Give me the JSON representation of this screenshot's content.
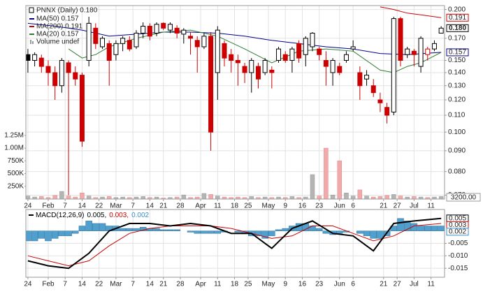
{
  "chart_data": [
    {
      "type": "candlestick",
      "title": "PNNX (Daily) 0.180",
      "log_y": true,
      "grid": true,
      "x": [
        0,
        2,
        4,
        6,
        8,
        10,
        12,
        14,
        16,
        18,
        20,
        22,
        24,
        26,
        28,
        30,
        32,
        34,
        36,
        38,
        40,
        42,
        44,
        46,
        48,
        50,
        52,
        54,
        56,
        58,
        60,
        62,
        64,
        66,
        68,
        70,
        72,
        74,
        76,
        78,
        80,
        82,
        84,
        86,
        88,
        90,
        92,
        94,
        96,
        98,
        100,
        102,
        104,
        106,
        108,
        110,
        112,
        114,
        116,
        118,
        120,
        122
      ],
      "open": [
        0.155,
        0.15,
        0.152,
        0.145,
        0.14,
        0.13,
        0.148,
        0.14,
        0.138,
        0.15,
        0.18,
        0.162,
        0.165,
        0.155,
        0.165,
        0.168,
        0.162,
        0.175,
        0.182,
        0.175,
        0.185,
        0.178,
        0.18,
        0.174,
        0.172,
        0.168,
        0.162,
        0.172,
        0.14,
        0.165,
        0.155,
        0.15,
        0.145,
        0.14,
        0.145,
        0.14,
        0.142,
        0.15,
        0.155,
        0.15,
        0.165,
        0.155,
        0.162,
        0.16,
        0.15,
        0.14,
        0.145,
        0.15,
        0.16,
        0.14,
        0.135,
        0.13,
        0.12,
        0.115,
        0.112,
        0.19,
        0.155,
        0.158,
        0.145,
        0.155,
        0.16,
        0.175
      ],
      "high": [
        0.16,
        0.157,
        0.155,
        0.15,
        0.145,
        0.152,
        0.15,
        0.145,
        0.14,
        0.192,
        0.185,
        0.172,
        0.168,
        0.168,
        0.172,
        0.172,
        0.178,
        0.186,
        0.185,
        0.186,
        0.186,
        0.186,
        0.183,
        0.18,
        0.176,
        0.172,
        0.175,
        0.176,
        0.182,
        0.168,
        0.16,
        0.155,
        0.148,
        0.152,
        0.148,
        0.152,
        0.145,
        0.162,
        0.158,
        0.162,
        0.168,
        0.172,
        0.176,
        0.162,
        0.158,
        0.152,
        0.148,
        0.158,
        0.168,
        0.145,
        0.142,
        0.135,
        0.125,
        0.118,
        0.192,
        0.192,
        0.162,
        0.16,
        0.172,
        0.162,
        0.168,
        0.182
      ],
      "low": [
        0.14,
        0.145,
        0.14,
        0.13,
        0.12,
        0.125,
        0.07,
        0.13,
        0.092,
        0.145,
        0.16,
        0.16,
        0.13,
        0.15,
        0.158,
        0.158,
        0.16,
        0.17,
        0.168,
        0.172,
        0.178,
        0.175,
        0.17,
        0.165,
        0.155,
        0.14,
        0.16,
        0.09,
        0.12,
        0.145,
        0.14,
        0.13,
        0.132,
        0.125,
        0.128,
        0.138,
        0.128,
        0.148,
        0.148,
        0.14,
        0.148,
        0.145,
        0.158,
        0.15,
        0.13,
        0.13,
        0.138,
        0.148,
        0.158,
        0.12,
        0.13,
        0.122,
        0.112,
        0.105,
        0.11,
        0.145,
        0.152,
        0.145,
        0.14,
        0.15,
        0.158,
        0.175
      ],
      "close": [
        0.15,
        0.155,
        0.145,
        0.14,
        0.13,
        0.15,
        0.14,
        0.135,
        0.095,
        0.185,
        0.165,
        0.17,
        0.15,
        0.165,
        0.17,
        0.16,
        0.175,
        0.182,
        0.172,
        0.184,
        0.18,
        0.184,
        0.175,
        0.178,
        0.17,
        0.162,
        0.172,
        0.1,
        0.178,
        0.152,
        0.15,
        0.148,
        0.14,
        0.15,
        0.135,
        0.15,
        0.14,
        0.16,
        0.15,
        0.16,
        0.152,
        0.17,
        0.175,
        0.155,
        0.145,
        0.15,
        0.14,
        0.155,
        0.162,
        0.13,
        0.138,
        0.125,
        0.118,
        0.11,
        0.19,
        0.15,
        0.16,
        0.155,
        0.17,
        0.16,
        0.165,
        0.18
      ],
      "up_color": "#000000",
      "down_color": "#cc0000",
      "volume": {
        "name": "Volume undef",
        "axis": "y2",
        "up_color": "#b4b4b4",
        "down_color": "#f2a9a9",
        "values": [
          60000,
          40000,
          50000,
          30000,
          70000,
          150000,
          60000,
          40000,
          120000,
          60000,
          30000,
          40000,
          50000,
          30000,
          40000,
          30000,
          40000,
          50000,
          30000,
          40000,
          20000,
          30000,
          40000,
          80000,
          30000,
          40000,
          110000,
          90000,
          60000,
          40000,
          30000,
          40000,
          30000,
          50000,
          30000,
          40000,
          30000,
          40000,
          30000,
          50000,
          30000,
          40000,
          480000,
          60000,
          1000000,
          80000,
          750000,
          120000,
          60000,
          180000,
          60000,
          40000,
          50000,
          70000,
          90000,
          60000,
          40000,
          50000,
          40000,
          30000,
          40000,
          50000
        ]
      },
      "series": [
        {
          "name": "MA(50) 0.157",
          "color": "#00008b",
          "x": [
            0,
            8,
            16,
            24,
            32,
            40,
            48,
            56,
            64,
            72,
            80,
            88,
            96,
            104,
            112,
            122
          ],
          "values": [
            0.185,
            0.182,
            0.178,
            0.172,
            0.174,
            0.176,
            0.176,
            0.175,
            0.172,
            0.168,
            0.165,
            0.162,
            0.16,
            0.156,
            0.155,
            0.157
          ]
        },
        {
          "name": "MA(200) 0.191",
          "color": "#cc0000",
          "x": [
            104,
            108,
            112,
            116,
            122
          ],
          "values": [
            0.203,
            0.2,
            0.196,
            0.194,
            0.191
          ]
        },
        {
          "name": "MA(20) 0.157",
          "color": "#2e7d32",
          "x": [
            12,
            16,
            20,
            24,
            32,
            40,
            48,
            56,
            64,
            72,
            80,
            88,
            96,
            104,
            108,
            112,
            116,
            122
          ],
          "values": [
            0.16,
            0.152,
            0.155,
            0.162,
            0.17,
            0.176,
            0.178,
            0.172,
            0.16,
            0.148,
            0.158,
            0.16,
            0.158,
            0.142,
            0.14,
            0.145,
            0.148,
            0.157
          ]
        }
      ],
      "xlim": [
        -0.6,
        123
      ],
      "xticks": [
        {
          "value": 0,
          "label": "24"
        },
        {
          "value": 6,
          "label": "Feb"
        },
        {
          "value": 11,
          "label": "7"
        },
        {
          "value": 16,
          "label": "14"
        },
        {
          "value": 21,
          "label": "22"
        },
        {
          "value": 26,
          "label": "Mar"
        },
        {
          "value": 31,
          "label": "7"
        },
        {
          "value": 36,
          "label": "14"
        },
        {
          "value": 40,
          "label": "21"
        },
        {
          "value": 45,
          "label": "28"
        },
        {
          "value": 51,
          "label": "Apr"
        },
        {
          "value": 56,
          "label": "11"
        },
        {
          "value": 61,
          "label": "18"
        },
        {
          "value": 65,
          "label": "25"
        },
        {
          "value": 71,
          "label": "May"
        },
        {
          "value": 76,
          "label": "9"
        },
        {
          "value": 81,
          "label": "16"
        },
        {
          "value": 86,
          "label": "23"
        },
        {
          "value": 92,
          "label": "Jun"
        },
        {
          "value": 96,
          "label": "6"
        },
        {
          "value": 105,
          "label": "21"
        },
        {
          "value": 109,
          "label": "27"
        },
        {
          "value": 114,
          "label": "Jul"
        },
        {
          "value": 119,
          "label": "11"
        }
      ],
      "ylim": [
        0.0685,
        0.2045
      ],
      "yticks": [
        {
          "value": 0.07,
          "label": "0.070"
        },
        {
          "value": 0.08,
          "label": "0.080"
        },
        {
          "value": 0.09,
          "label": "0.090"
        },
        {
          "value": 0.1,
          "label": "0.100"
        },
        {
          "value": 0.11,
          "label": "0.110"
        },
        {
          "value": 0.12,
          "label": "0.120"
        },
        {
          "value": 0.13,
          "label": "0.130"
        },
        {
          "value": 0.14,
          "label": "0.140"
        },
        {
          "value": 0.15,
          "label": "0.150"
        },
        {
          "value": 0.17,
          "label": "0.170"
        },
        {
          "value": 0.2,
          "label": "0.200"
        }
      ],
      "y2lim": [
        0,
        3800000
      ],
      "y2ticks": [
        {
          "value": 250000,
          "label": "250K"
        },
        {
          "value": 500000,
          "label": "500K"
        },
        {
          "value": 750000,
          "label": "750K"
        },
        {
          "value": 1000000,
          "label": "1.00M"
        },
        {
          "value": 1250000,
          "label": "1.25M"
        }
      ],
      "y2_label": "3200.00",
      "last_labels": [
        {
          "value": 0.191,
          "label": "0.191",
          "color": "#cc0000",
          "bold": false
        },
        {
          "value": 0.18,
          "label": "0.180",
          "color": "#000000",
          "bold": true
        },
        {
          "value": 0.157,
          "label": "0.157",
          "color": "#00008b",
          "bold": false
        }
      ]
    },
    {
      "type": "macd",
      "grid": true,
      "legend": [
        {
          "text": "MACD(12,26,9)",
          "color": "#000000"
        },
        {
          "text": "0.005,",
          "color": "#000000"
        },
        {
          "text": "0.003,",
          "color": "#cc0000"
        },
        {
          "text": "0.002",
          "color": "#3a8fc8"
        }
      ],
      "series": [
        {
          "color": "#cc0000",
          "width": 1,
          "x": [
            0,
            6,
            12,
            18,
            24,
            30,
            36,
            42,
            48,
            54,
            60,
            66,
            72,
            78,
            84,
            90,
            96,
            102,
            108,
            114,
            122
          ],
          "values": [
            -0.01,
            -0.012,
            -0.014,
            -0.012,
            -0.006,
            -0.001,
            0.001,
            0.002,
            0.002,
            0.002,
            0.001,
            -0.001,
            -0.003,
            -0.002,
            0.002,
            0.002,
            -0.001,
            -0.004,
            -0.002,
            0.002,
            0.003
          ]
        },
        {
          "color": "#000000",
          "width": 2,
          "x": [
            0,
            6,
            12,
            18,
            24,
            30,
            36,
            42,
            48,
            54,
            60,
            66,
            72,
            78,
            84,
            90,
            96,
            102,
            108,
            114,
            122
          ],
          "values": [
            -0.012,
            -0.014,
            -0.015,
            -0.009,
            0.0,
            0.003,
            0.003,
            0.002,
            0.003,
            0.002,
            -0.001,
            -0.001,
            -0.007,
            0.001,
            0.004,
            -0.001,
            -0.002,
            -0.008,
            0.003,
            0.004,
            0.005
          ]
        }
      ],
      "histogram": {
        "color": "#4f9fcf",
        "x": [
          0,
          2,
          4,
          6,
          8,
          10,
          12,
          14,
          16,
          18,
          20,
          22,
          24,
          26,
          28,
          30,
          32,
          34,
          36,
          38,
          40,
          42,
          44,
          46,
          48,
          50,
          52,
          54,
          56,
          58,
          60,
          62,
          64,
          66,
          68,
          70,
          72,
          74,
          76,
          78,
          80,
          82,
          84,
          86,
          88,
          90,
          92,
          94,
          96,
          98,
          100,
          102,
          104,
          106,
          108,
          110,
          112,
          114,
          116,
          118,
          120,
          122
        ],
        "values": [
          -0.004,
          -0.004,
          -0.003,
          -0.004,
          -0.003,
          -0.002,
          -0.002,
          -0.001,
          0.002,
          0.004,
          0.003,
          0.003,
          0.002,
          0.002,
          0.001,
          0.001,
          0.001,
          0.0015,
          0.001,
          0.001,
          0.0005,
          0.0005,
          0.0005,
          0,
          -0.0005,
          -0.001,
          -0.001,
          -0.001,
          -0.001,
          -0.0005,
          0,
          -0.0005,
          -0.001,
          -0.002,
          -0.002,
          -0.003,
          -0.002,
          0.0005,
          0.001,
          0.002,
          0.003,
          0.003,
          0.002,
          0.001,
          -0.001,
          -0.0015,
          -0.001,
          -0.0005,
          0,
          -0.001,
          -0.002,
          -0.003,
          -0.003,
          -0.002,
          0.002,
          0.005,
          0.004,
          0.003,
          0.002,
          0.002,
          0.002,
          0.002
        ]
      },
      "xlim": [
        -0.6,
        123
      ],
      "xticks": [
        {
          "value": 0,
          "label": "24"
        },
        {
          "value": 6,
          "label": "Feb"
        },
        {
          "value": 11,
          "label": "7"
        },
        {
          "value": 16,
          "label": "14"
        },
        {
          "value": 21,
          "label": "22"
        },
        {
          "value": 26,
          "label": "Mar"
        },
        {
          "value": 31,
          "label": "7"
        },
        {
          "value": 36,
          "label": "14"
        },
        {
          "value": 40,
          "label": "21"
        },
        {
          "value": 45,
          "label": "28"
        },
        {
          "value": 51,
          "label": "Apr"
        },
        {
          "value": 56,
          "label": "11"
        },
        {
          "value": 61,
          "label": "18"
        },
        {
          "value": 65,
          "label": "25"
        },
        {
          "value": 71,
          "label": "May"
        },
        {
          "value": 76,
          "label": "9"
        },
        {
          "value": 81,
          "label": "16"
        },
        {
          "value": 86,
          "label": "23"
        },
        {
          "value": 92,
          "label": "Jun"
        },
        {
          "value": 96,
          "label": "6"
        },
        {
          "value": 105,
          "label": "21"
        },
        {
          "value": 109,
          "label": "27"
        },
        {
          "value": 114,
          "label": "Jul"
        },
        {
          "value": 119,
          "label": "11"
        }
      ],
      "ylim": [
        -0.0186,
        0.0086
      ],
      "yticks": [
        {
          "value": -0.005,
          "label": "-0.005"
        },
        {
          "value": -0.01,
          "label": "-0.010"
        },
        {
          "value": -0.015,
          "label": "-0.015"
        }
      ],
      "last_labels": [
        {
          "value": 0.005,
          "label": "0.005",
          "color": "#000000",
          "bold": false
        },
        {
          "value": 0.003,
          "label": "0.003",
          "color": "#cc0000",
          "bold": false
        },
        {
          "value": 0.002,
          "label": "0.002",
          "color": "#3a8fc8",
          "bold": false
        }
      ]
    }
  ]
}
